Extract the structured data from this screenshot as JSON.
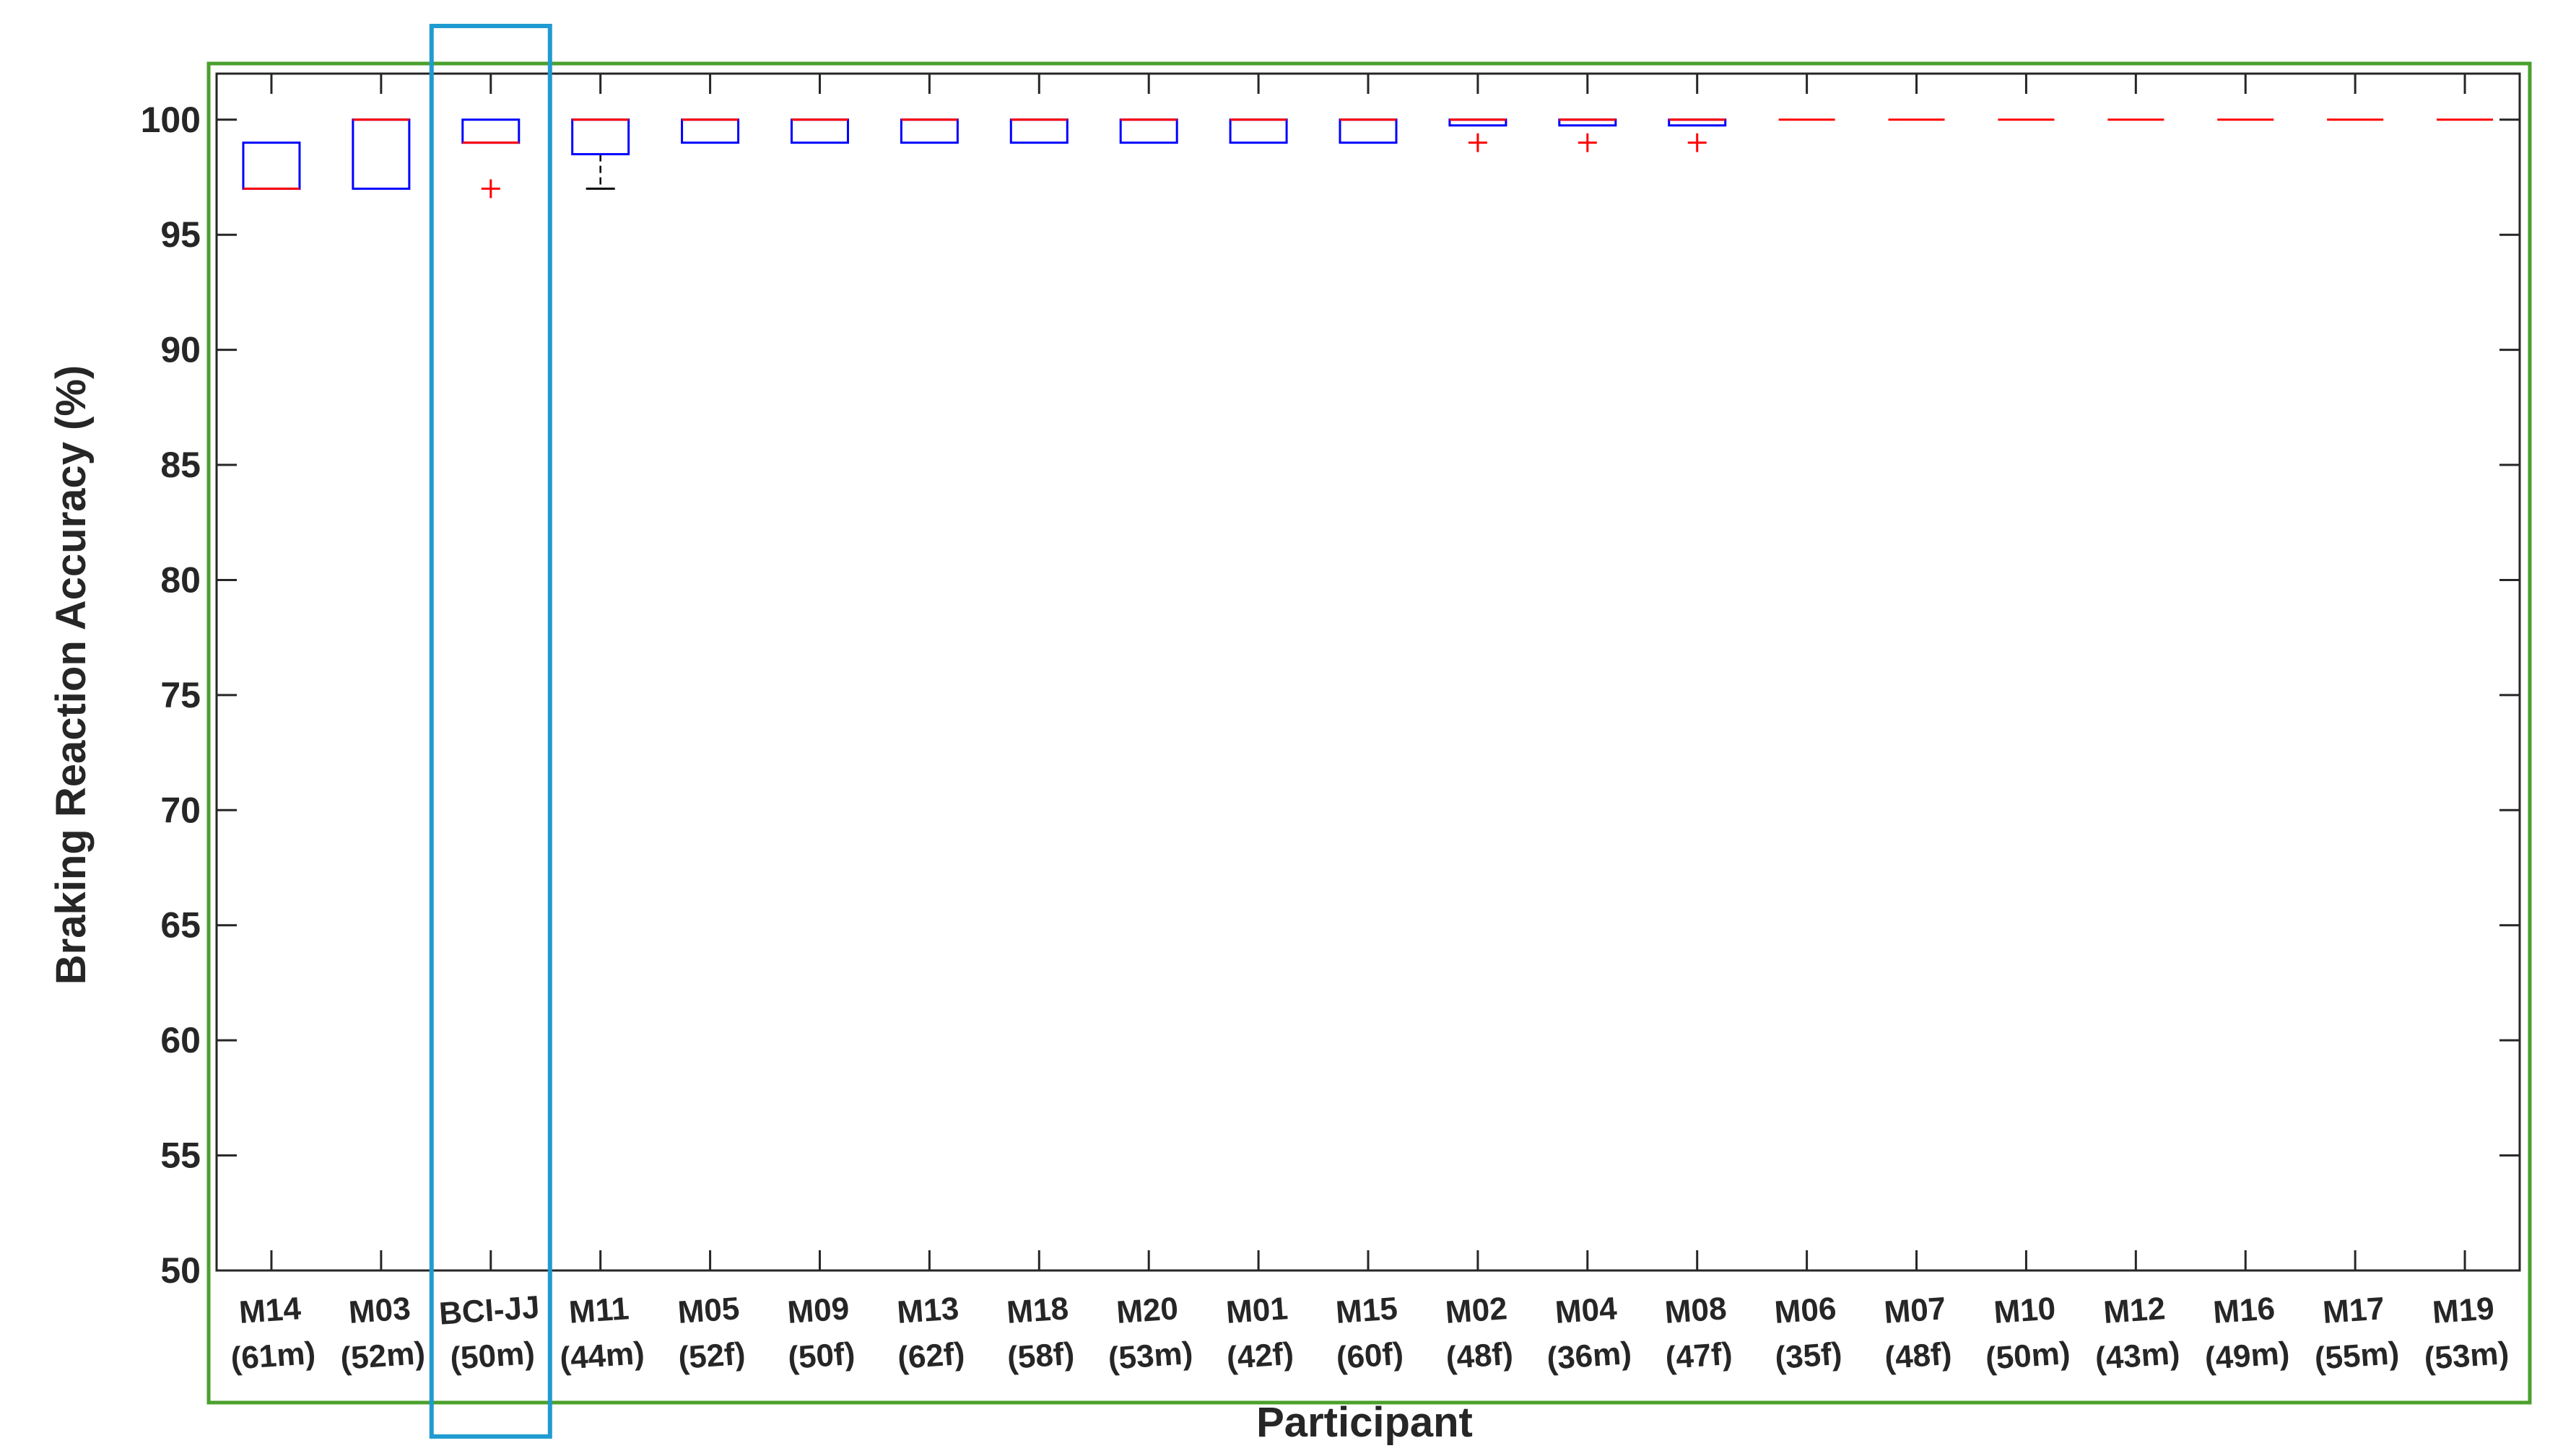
{
  "chart_data": {
    "type": "box",
    "title": "",
    "xlabel": "Participant",
    "ylabel": "Braking Reaction Accuracy (%)",
    "ylim": [
      50,
      102
    ],
    "yticks": [
      50,
      55,
      60,
      65,
      70,
      75,
      80,
      85,
      90,
      95,
      100
    ],
    "grid": false,
    "categories": [
      {
        "id": "M14",
        "sub": "(61m)"
      },
      {
        "id": "M03",
        "sub": "(52m)"
      },
      {
        "id": "BCI-JJ",
        "sub": "(50m)"
      },
      {
        "id": "M11",
        "sub": "(44m)"
      },
      {
        "id": "M05",
        "sub": "(52f)"
      },
      {
        "id": "M09",
        "sub": "(50f)"
      },
      {
        "id": "M13",
        "sub": "(62f)"
      },
      {
        "id": "M18",
        "sub": "(58f)"
      },
      {
        "id": "M20",
        "sub": "(53m)"
      },
      {
        "id": "M01",
        "sub": "(42f)"
      },
      {
        "id": "M15",
        "sub": "(60f)"
      },
      {
        "id": "M02",
        "sub": "(48f)"
      },
      {
        "id": "M04",
        "sub": "(36m)"
      },
      {
        "id": "M08",
        "sub": "(47f)"
      },
      {
        "id": "M06",
        "sub": "(35f)"
      },
      {
        "id": "M07",
        "sub": "(48f)"
      },
      {
        "id": "M10",
        "sub": "(50m)"
      },
      {
        "id": "M12",
        "sub": "(43m)"
      },
      {
        "id": "M16",
        "sub": "(49m)"
      },
      {
        "id": "M17",
        "sub": "(55m)"
      },
      {
        "id": "M19",
        "sub": "(53m)"
      }
    ],
    "boxes": [
      {
        "q1": 97,
        "median": 97,
        "q3": 99,
        "whisker_low": 97,
        "whisker_high": 99,
        "outliers": []
      },
      {
        "q1": 97,
        "median": 100,
        "q3": 100,
        "whisker_low": 97,
        "whisker_high": 100,
        "outliers": []
      },
      {
        "q1": 99,
        "median": 99,
        "q3": 100,
        "whisker_low": 99,
        "whisker_high": 100,
        "outliers": [
          97
        ]
      },
      {
        "q1": 98.5,
        "median": 100,
        "q3": 100,
        "whisker_low": 97,
        "whisker_high": 100,
        "outliers": []
      },
      {
        "q1": 99,
        "median": 100,
        "q3": 100,
        "whisker_low": 99,
        "whisker_high": 100,
        "outliers": []
      },
      {
        "q1": 99,
        "median": 100,
        "q3": 100,
        "whisker_low": 99,
        "whisker_high": 100,
        "outliers": []
      },
      {
        "q1": 99,
        "median": 100,
        "q3": 100,
        "whisker_low": 99,
        "whisker_high": 100,
        "outliers": []
      },
      {
        "q1": 99,
        "median": 100,
        "q3": 100,
        "whisker_low": 99,
        "whisker_high": 100,
        "outliers": []
      },
      {
        "q1": 99,
        "median": 100,
        "q3": 100,
        "whisker_low": 99,
        "whisker_high": 100,
        "outliers": []
      },
      {
        "q1": 99,
        "median": 100,
        "q3": 100,
        "whisker_low": 99,
        "whisker_high": 100,
        "outliers": []
      },
      {
        "q1": 99,
        "median": 100,
        "q3": 100,
        "whisker_low": 99,
        "whisker_high": 100,
        "outliers": []
      },
      {
        "q1": 99.75,
        "median": 100,
        "q3": 100,
        "whisker_low": 99.75,
        "whisker_high": 100,
        "outliers": [
          99
        ]
      },
      {
        "q1": 99.75,
        "median": 100,
        "q3": 100,
        "whisker_low": 99.75,
        "whisker_high": 100,
        "outliers": [
          99
        ]
      },
      {
        "q1": 99.75,
        "median": 100,
        "q3": 100,
        "whisker_low": 99.75,
        "whisker_high": 100,
        "outliers": [
          99
        ]
      },
      {
        "q1": 100,
        "median": 100,
        "q3": 100,
        "whisker_low": 100,
        "whisker_high": 100,
        "outliers": []
      },
      {
        "q1": 100,
        "median": 100,
        "q3": 100,
        "whisker_low": 100,
        "whisker_high": 100,
        "outliers": []
      },
      {
        "q1": 100,
        "median": 100,
        "q3": 100,
        "whisker_low": 100,
        "whisker_high": 100,
        "outliers": []
      },
      {
        "q1": 100,
        "median": 100,
        "q3": 100,
        "whisker_low": 100,
        "whisker_high": 100,
        "outliers": []
      },
      {
        "q1": 100,
        "median": 100,
        "q3": 100,
        "whisker_low": 100,
        "whisker_high": 100,
        "outliers": []
      },
      {
        "q1": 100,
        "median": 100,
        "q3": 100,
        "whisker_low": 100,
        "whisker_high": 100,
        "outliers": []
      },
      {
        "q1": 100,
        "median": 100,
        "q3": 100,
        "whisker_low": 100,
        "whisker_high": 100,
        "outliers": []
      }
    ],
    "highlighted_category": "BCI-JJ",
    "colors": {
      "box": "#0000ff",
      "median": "#ff0000",
      "outlier": "#ff0000",
      "whisker": "#000000",
      "highlight_frame": "#1f9bd1",
      "outer_frame": "#4aa02c",
      "axis": "#262626"
    }
  }
}
